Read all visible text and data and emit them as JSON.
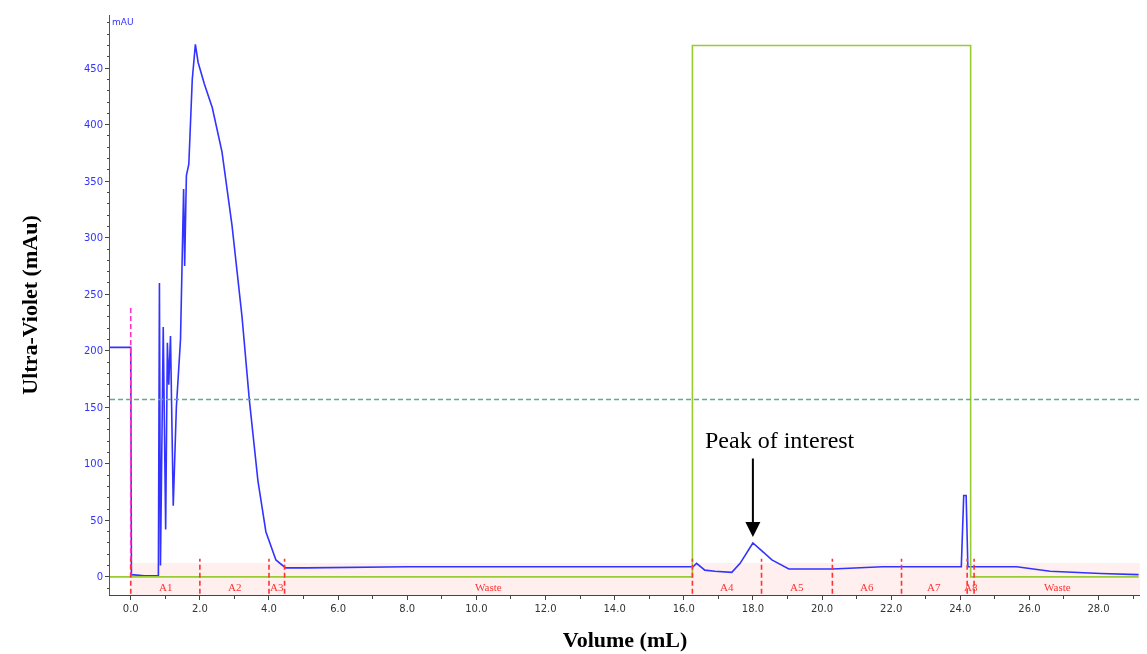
{
  "chart_data": {
    "type": "line",
    "xlabel": "Volume (mL)",
    "ylabel": "Ultra-Violet (mAu)",
    "annotations": [
      "mAU",
      {
        "text": "Peak of interest",
        "x": 18.0,
        "y": 30
      }
    ],
    "xlim": [
      -0.6,
      29.2
    ],
    "ylim": [
      -16,
      497
    ],
    "xticks": [
      {
        "value": 0,
        "label": "0.0"
      },
      {
        "value": 2,
        "label": "2.0"
      },
      {
        "value": 4,
        "label": "4.0"
      },
      {
        "value": 6,
        "label": "6.0"
      },
      {
        "value": 8,
        "label": "8.0"
      },
      {
        "value": 10,
        "label": "10.0"
      },
      {
        "value": 12,
        "label": "12.0"
      },
      {
        "value": 14,
        "label": "14.0"
      },
      {
        "value": 16,
        "label": "16.0"
      },
      {
        "value": 18,
        "label": "18.0"
      },
      {
        "value": 20,
        "label": "20.0"
      },
      {
        "value": 22,
        "label": "22.0"
      },
      {
        "value": 24,
        "label": "24.0"
      },
      {
        "value": 26,
        "label": "26.0"
      },
      {
        "value": 28,
        "label": "28.0"
      }
    ],
    "yticks": [
      0,
      50,
      100,
      150,
      200,
      250,
      300,
      350,
      400,
      450
    ],
    "series": [
      {
        "color": "#3333ff",
        "x": [
          -0.6,
          0.0,
          0.02,
          0.4,
          0.8,
          0.83,
          0.86,
          0.94,
          1.01,
          1.06,
          1.1,
          1.15,
          1.23,
          1.32,
          1.44,
          1.53,
          1.56,
          1.61,
          1.68,
          1.78,
          1.87,
          1.95,
          2.13,
          2.36,
          2.64,
          2.93,
          3.22,
          3.43,
          3.68,
          3.91,
          4.2,
          4.48,
          4.71,
          5.06,
          8.0,
          12.0,
          15.94,
          16.27,
          16.37,
          16.61,
          16.9,
          17.39,
          17.63,
          18.0,
          18.26,
          18.55,
          19.04,
          20.3,
          21.75,
          24.03,
          24.1,
          24.17,
          24.22,
          25.63,
          26.6,
          28.06,
          29.16
        ],
        "values": [
          203,
          203,
          2,
          1,
          1,
          260,
          10,
          221,
          42,
          207,
          170,
          213,
          63,
          150,
          210,
          343,
          275,
          355,
          365,
          440,
          471,
          455,
          436,
          415,
          376,
          311,
          230,
          157,
          85,
          40,
          15,
          8,
          8,
          8,
          9,
          9,
          9,
          9,
          12,
          6,
          5,
          4,
          12,
          30,
          23,
          15,
          7,
          7,
          9,
          9,
          72,
          72,
          9,
          9,
          5,
          3,
          2
        ]
      },
      {
        "color": "#99cc33",
        "x": [
          -0.6,
          16.25,
          16.25,
          24.3,
          24.3,
          29.16
        ],
        "values": [
          0,
          0,
          470,
          470,
          0,
          0
        ]
      },
      {
        "color": "#ff33cc",
        "line_style": "dashed",
        "x": [
          0,
          0
        ],
        "values": [
          0,
          240
        ]
      },
      {
        "color": "#ff3333",
        "line_style": "dashed",
        "x": [
          0,
          0,
          null,
          2,
          2,
          null,
          4,
          4,
          null,
          4.45,
          4.45,
          null,
          16.25,
          16.25,
          null,
          18.25,
          18.25,
          null,
          20.3,
          20.3,
          null,
          22.3,
          22.3,
          null,
          24.2,
          24.2,
          null,
          24.4,
          24.4
        ],
        "values": [
          -15,
          16,
          null,
          -15,
          16,
          null,
          -15,
          16,
          null,
          -15,
          16,
          null,
          -15,
          16,
          null,
          -15,
          16,
          null,
          -15,
          16,
          null,
          -15,
          16,
          null,
          -15,
          16,
          null,
          -15,
          16
        ]
      }
    ],
    "ref_lines": [
      {
        "axis": "y",
        "value": 157,
        "color": "#66aa88",
        "line_style": "dashed"
      }
    ],
    "bands": [
      {
        "axis": "x",
        "from": 0,
        "to": 2,
        "label": "A1",
        "color": "#ff3333"
      },
      {
        "axis": "x",
        "from": 2,
        "to": 4,
        "label": "A2",
        "color": "#ff3333"
      },
      {
        "axis": "x",
        "from": 4,
        "to": 4.45,
        "label": "A3",
        "color": "#ff3333"
      },
      {
        "axis": "x",
        "from": 4.45,
        "to": 16.25,
        "label": "Waste",
        "color": "#ff3333"
      },
      {
        "axis": "x",
        "from": 16.25,
        "to": 18.25,
        "label": "A4",
        "color": "#ff3333"
      },
      {
        "axis": "x",
        "from": 18.25,
        "to": 20.3,
        "label": "A5",
        "color": "#ff3333"
      },
      {
        "axis": "x",
        "from": 20.3,
        "to": 22.3,
        "label": "A6",
        "color": "#ff3333"
      },
      {
        "axis": "x",
        "from": 22.3,
        "to": 24.2,
        "label": "A7",
        "color": "#ff3333"
      },
      {
        "axis": "x",
        "from": 24.2,
        "to": 24.4,
        "label": "A8",
        "color": "#ff3333"
      },
      {
        "axis": "x",
        "from": 24.4,
        "to": 29.2,
        "label": "Waste",
        "color": "#ff3333"
      }
    ]
  }
}
